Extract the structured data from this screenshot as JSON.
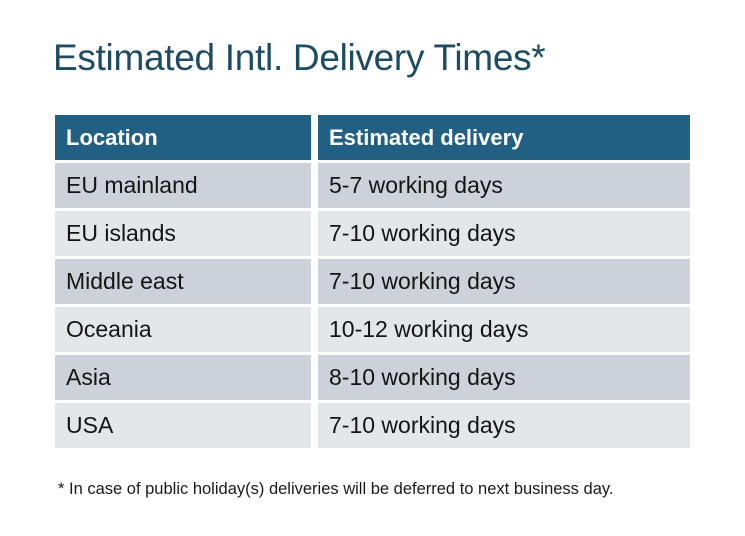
{
  "page": {
    "title": "Estimated Intl. Delivery Times*",
    "footnote": "* In case of public holiday(s) deliveries will be deferred to next business day."
  },
  "table": {
    "columns": [
      "Location",
      "Estimated delivery"
    ],
    "rows": [
      {
        "location": "EU mainland",
        "delivery": "5-7 working days"
      },
      {
        "location": "EU islands",
        "delivery": "7-10 working days"
      },
      {
        "location": "Middle east",
        "delivery": "7-10 working days"
      },
      {
        "location": "Oceania",
        "delivery": "10-12 working days"
      },
      {
        "location": "Asia",
        "delivery": "8-10 working days"
      },
      {
        "location": "USA",
        "delivery": "7-10 working days"
      }
    ]
  },
  "colors": {
    "background": "#FFFFFF",
    "title": "#1C4B62",
    "header_bg": "#216082",
    "header_text": "#FFFFFF",
    "row_dark": "#CDD1D9",
    "row_light": "#E4E7EA",
    "body_text": "#141414",
    "footnote_text": "#1A1A1A"
  }
}
